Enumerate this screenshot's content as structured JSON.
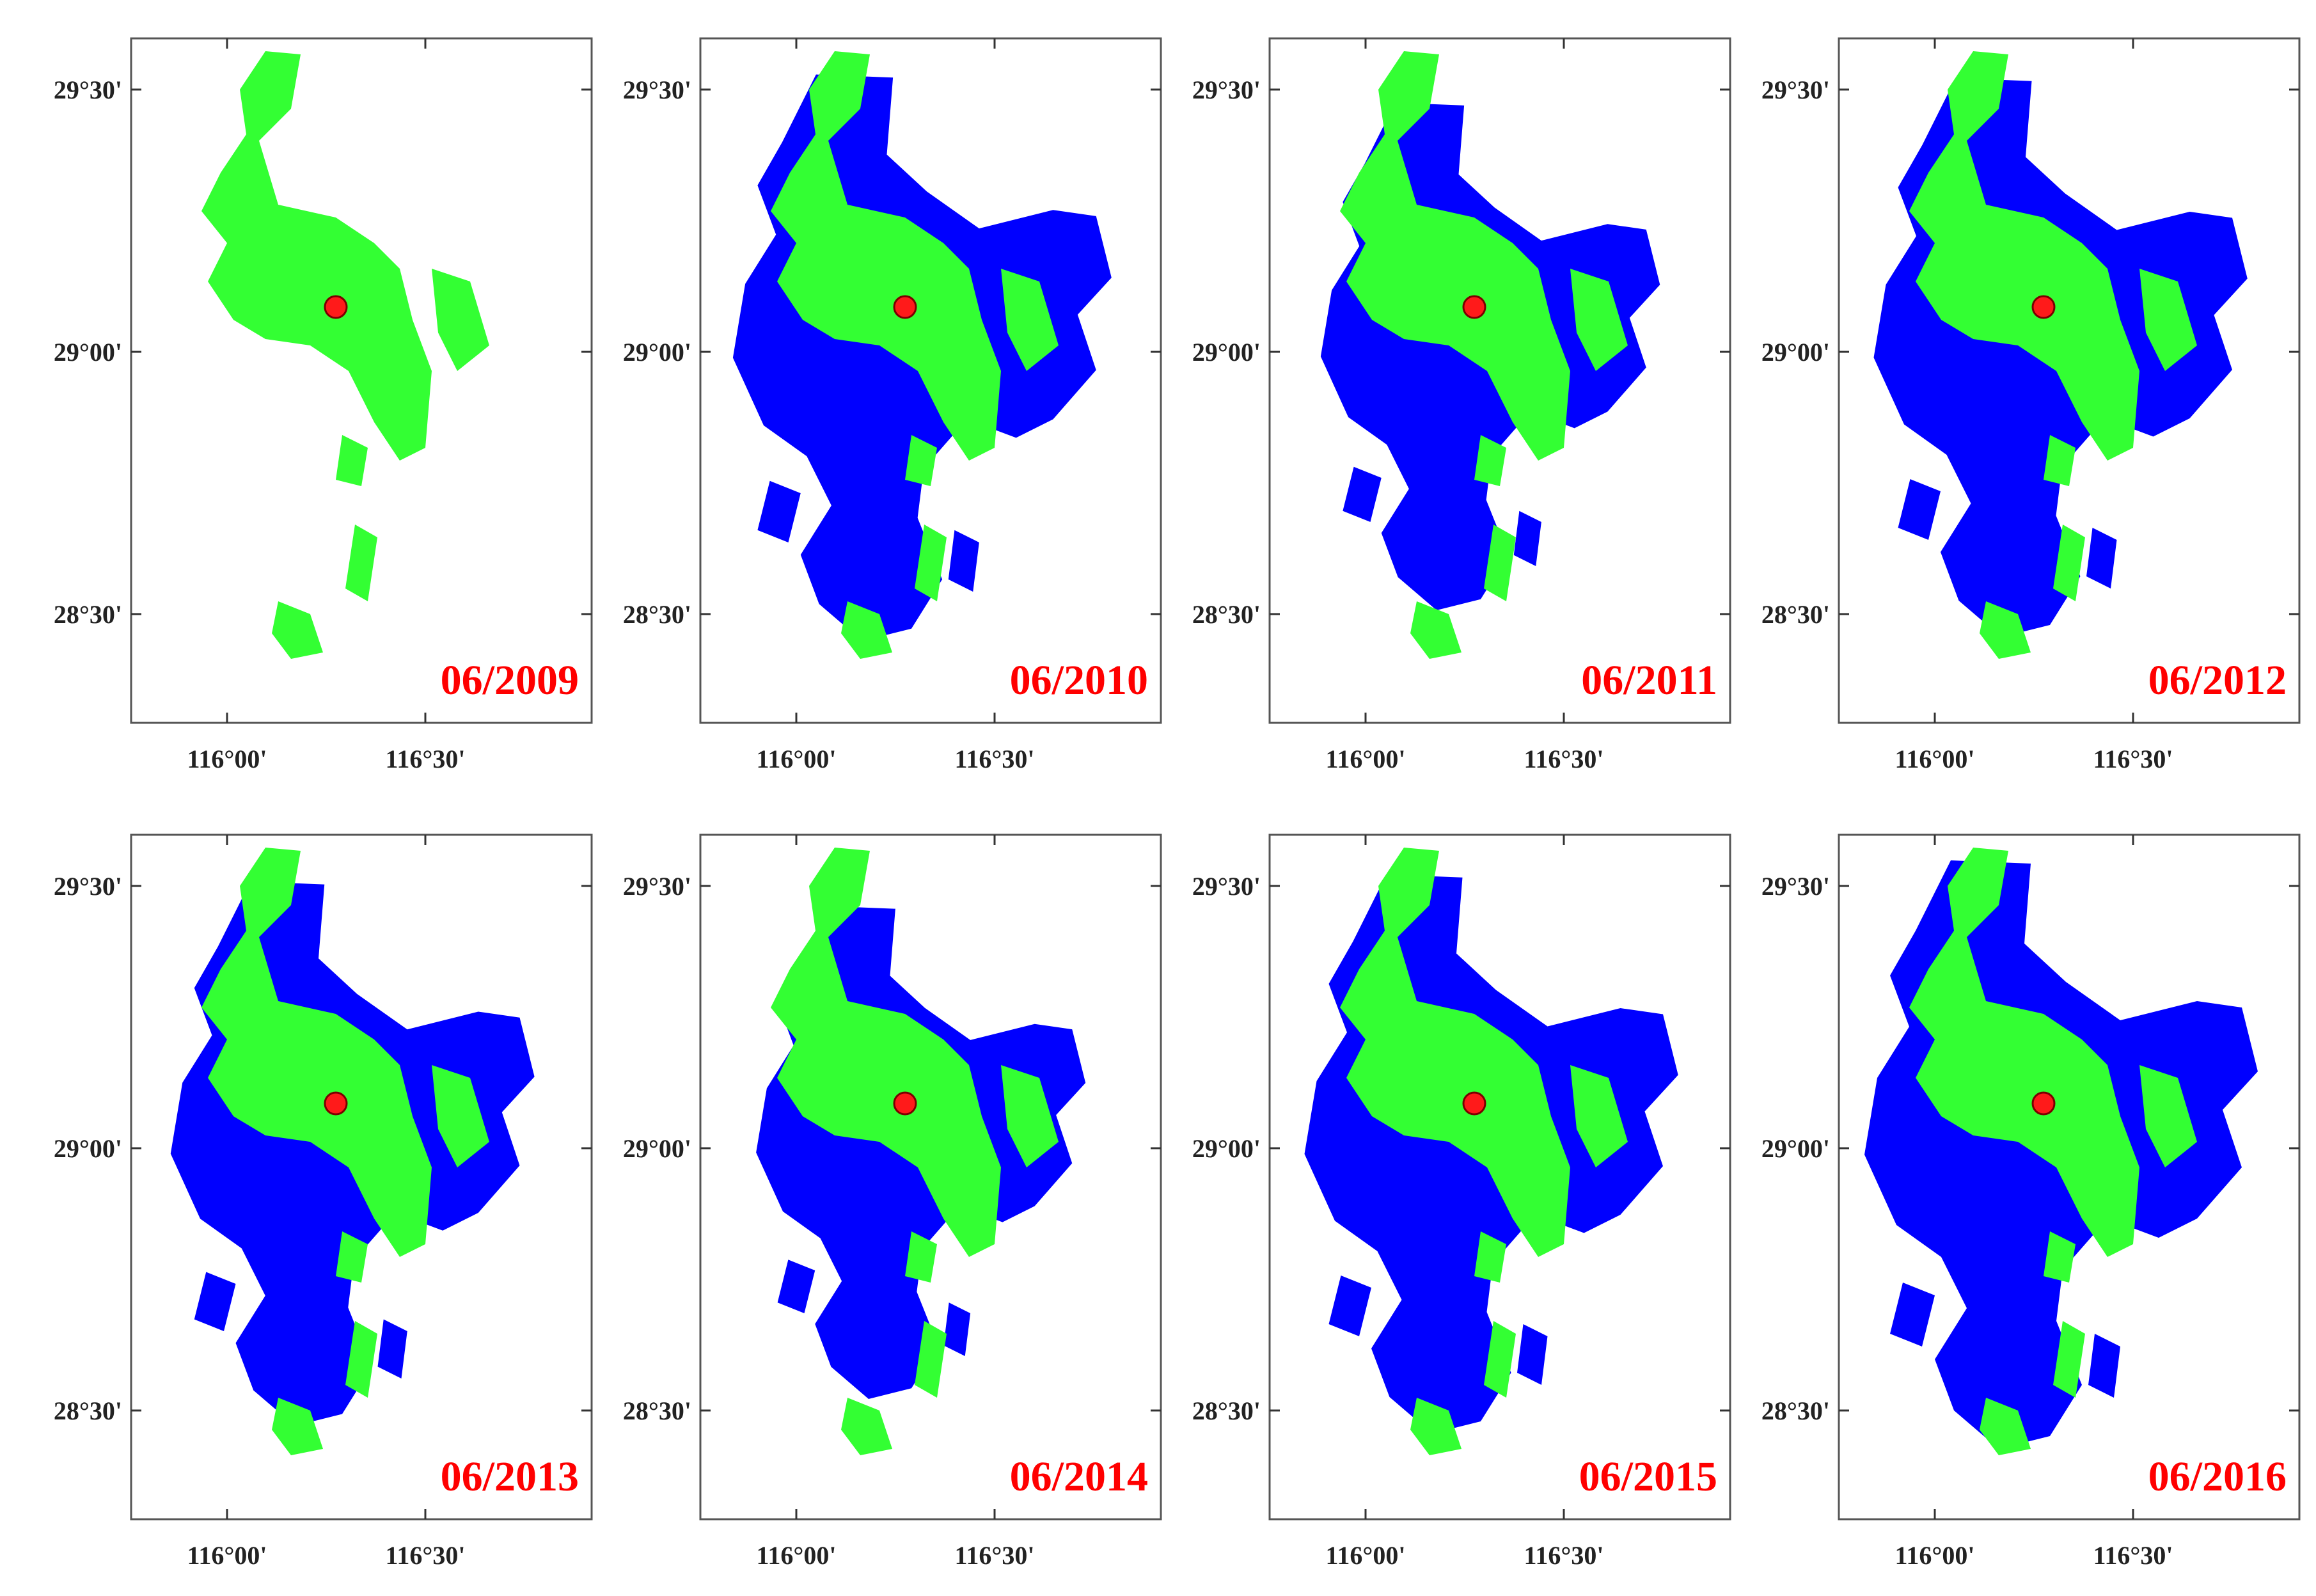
{
  "figure": {
    "type": "water-extent-map-grid",
    "rows": 2,
    "columns": 4
  },
  "colors": {
    "water_extent_fill": "#0000ff",
    "core_water_fill": "#33ff33",
    "marker_fill": "#ff1a1a",
    "date_label": "#ff0000"
  },
  "axes": {
    "latitude_ticks": [
      "29°30'",
      "29°00'",
      "28°30'"
    ],
    "longitude_ticks": [
      "116°00'",
      "116°30'"
    ]
  },
  "panels": [
    {
      "date": "06/2009",
      "blue_extent": 0
    },
    {
      "date": "06/2010",
      "blue_extent": 0.85
    },
    {
      "date": "06/2011",
      "blue_extent": 0.45
    },
    {
      "date": "06/2012",
      "blue_extent": 0.8
    },
    {
      "date": "06/2013",
      "blue_extent": 0.7
    },
    {
      "date": "06/2014",
      "blue_extent": 0.35
    },
    {
      "date": "06/2015",
      "blue_extent": 0.8
    },
    {
      "date": "06/2016",
      "blue_extent": 1.0
    }
  ]
}
